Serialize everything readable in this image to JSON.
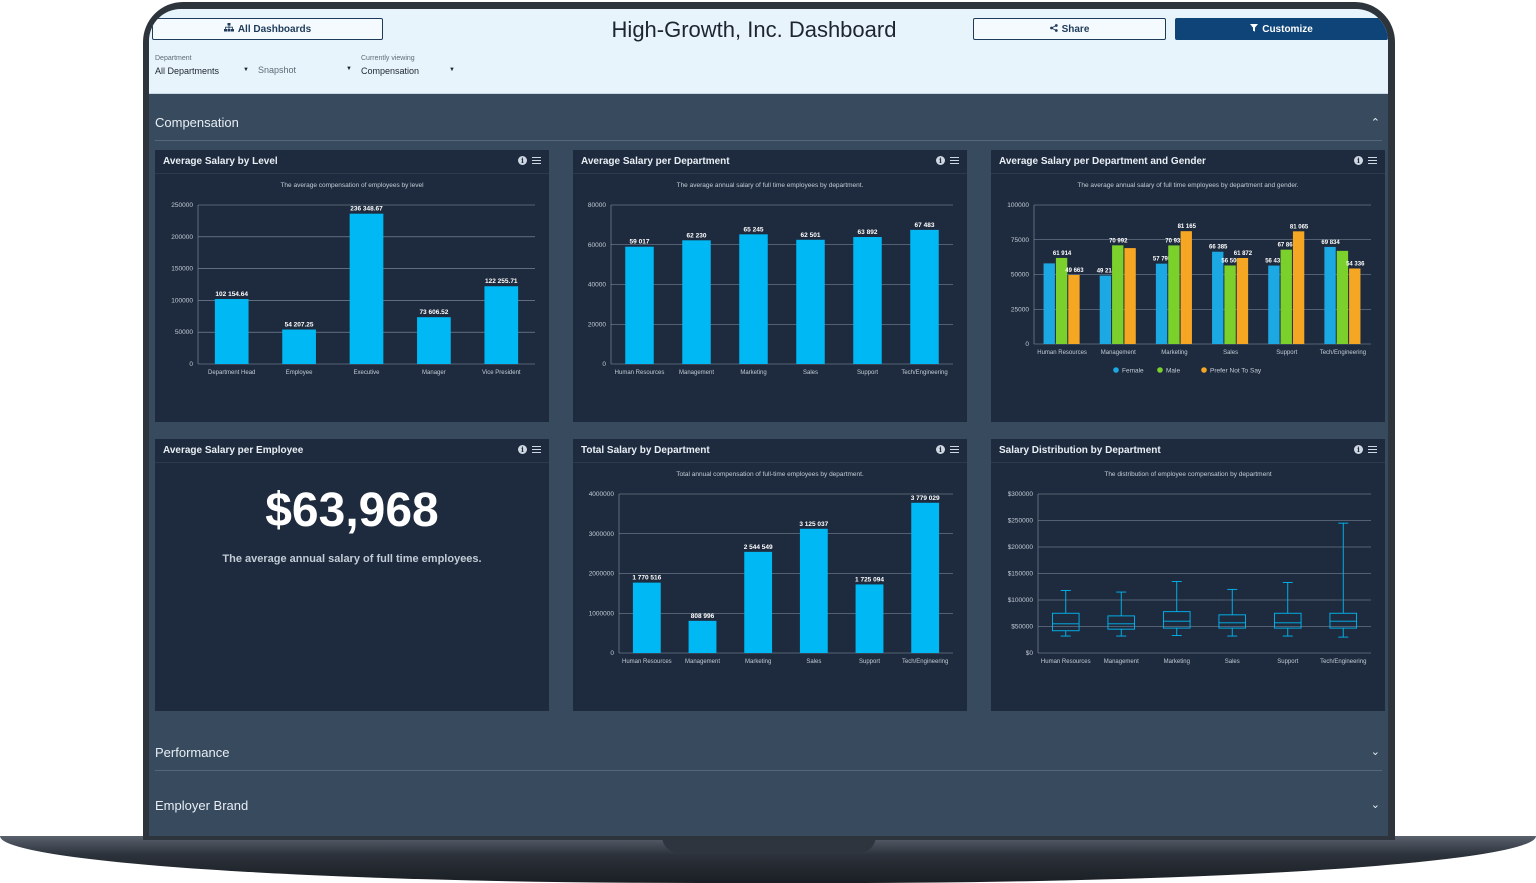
{
  "header": {
    "all_dashboards_label": "All Dashboards",
    "title": "High-Growth, Inc. Dashboard",
    "share_label": "Share",
    "customize_label": "Customize"
  },
  "filters": {
    "department_label": "Department",
    "department_value": "All Departments",
    "snapshot_placeholder": "Snapshot",
    "viewing_label": "Currently viewing",
    "viewing_value": "Compensation"
  },
  "sections": {
    "compensation": "Compensation",
    "performance": "Performance",
    "employer_brand": "Employer Brand"
  },
  "colors": {
    "bar": "#00b8f4",
    "female": "#1ba8e3",
    "male": "#7cd02c",
    "prefer_not": "#f5a623",
    "grid": "#8896a8",
    "axis_text": "#c3ccd6",
    "label_text": "#ffffff"
  },
  "kpi": {
    "title": "Average Salary per Employee",
    "value": "$63,968",
    "description": "The average annual salary of full time employees."
  },
  "chart_data": [
    {
      "id": "salary_by_level",
      "type": "bar",
      "title": "Average Salary by Level",
      "subtitle": "The average compensation of employees by level",
      "categories": [
        "Department Head",
        "Employee",
        "Executive",
        "Manager",
        "Vice President"
      ],
      "values": [
        102154.64,
        54207.25,
        236348.67,
        73606.52,
        122255.71
      ],
      "data_labels": [
        "102 154.64",
        "54 207.25",
        "236 348.67",
        "73 606.52",
        "122 255.71"
      ],
      "ylim": [
        0,
        250000
      ],
      "yticks": [
        "0",
        "50000",
        "100000",
        "150000",
        "200000",
        "250000"
      ],
      "grid": true
    },
    {
      "id": "salary_per_department",
      "type": "bar",
      "title": "Average Salary per Department",
      "subtitle": "The average annual salary of full time employees by department.",
      "categories": [
        "Human Resources",
        "Management",
        "Marketing",
        "Sales",
        "Support",
        "Tech/Engineering"
      ],
      "values": [
        59017,
        62230,
        65245,
        62501,
        63892,
        67483
      ],
      "data_labels": [
        "59 017",
        "62 230",
        "65 245",
        "62 501",
        "63 892",
        "67 483"
      ],
      "ylim": [
        0,
        80000
      ],
      "yticks": [
        "0",
        "20000",
        "40000",
        "60000",
        "80000"
      ],
      "grid": true
    },
    {
      "id": "salary_per_department_gender",
      "type": "bar",
      "title": "Average Salary per Department and Gender",
      "subtitle": "The average annual salary of full time employees by department and gender.",
      "categories": [
        "Human Resources",
        "Management",
        "Marketing",
        "Sales",
        "Support",
        "Tech/Engineering"
      ],
      "series": [
        {
          "name": "Female",
          "values": [
            58000,
            49214,
            57795,
            66385,
            56433,
            69834
          ]
        },
        {
          "name": "Male",
          "values": [
            61914,
            70992,
            70932,
            56506,
            67863,
            67000
          ]
        },
        {
          "name": "Prefer Not To Say",
          "values": [
            49663,
            69000,
            81165,
            61872,
            81065,
            54336
          ]
        }
      ],
      "data_labels": [
        [
          "",
          "49 214",
          "57 795",
          "66 385",
          "56 433",
          "69 834"
        ],
        [
          "61 914",
          "70 992",
          "70 932",
          "56 506",
          "67 863",
          ""
        ],
        [
          "49 663",
          "",
          "81 165",
          "61 872",
          "81 065",
          "54 336"
        ]
      ],
      "ylim": [
        0,
        100000
      ],
      "yticks": [
        "0",
        "25000",
        "50000",
        "75000",
        "100000"
      ],
      "legend": "bottom",
      "grid": true
    },
    {
      "id": "total_salary_by_department",
      "type": "bar",
      "title": "Total Salary by Department",
      "subtitle": "Total annual compensation of full-time employees by department.",
      "categories": [
        "Human Resources",
        "Management",
        "Marketing",
        "Sales",
        "Support",
        "Tech/Engineering"
      ],
      "values": [
        1770516,
        808996,
        2544549,
        3125037,
        1725094,
        3779029
      ],
      "data_labels": [
        "1 770 516",
        "808 996",
        "2 544 549",
        "3 125 037",
        "1 725 094",
        "3 779 029"
      ],
      "ylim": [
        0,
        4000000
      ],
      "yticks": [
        "0",
        "1000000",
        "2000000",
        "3000000",
        "4000000"
      ],
      "grid": true
    },
    {
      "id": "salary_distribution_by_department",
      "type": "boxplot",
      "title": "Salary Distribution by Department",
      "subtitle": "The distribution of employee compensation by department",
      "categories": [
        "Human Resources",
        "Management",
        "Marketing",
        "Sales",
        "Support",
        "Tech/Engineering"
      ],
      "boxes": [
        {
          "min": 32000,
          "q1": 42000,
          "median": 55000,
          "q3": 75000,
          "max": 118000
        },
        {
          "min": 32000,
          "q1": 45000,
          "median": 55000,
          "q3": 70000,
          "max": 115000
        },
        {
          "min": 33000,
          "q1": 47000,
          "median": 60000,
          "q3": 78000,
          "max": 135000
        },
        {
          "min": 32000,
          "q1": 47000,
          "median": 57000,
          "q3": 72000,
          "max": 120000
        },
        {
          "min": 32000,
          "q1": 47000,
          "median": 57000,
          "q3": 75000,
          "max": 133000
        },
        {
          "min": 30000,
          "q1": 47000,
          "median": 60000,
          "q3": 75000,
          "max": 245000
        }
      ],
      "ylim": [
        0,
        300000
      ],
      "yticks": [
        "$0",
        "$50000",
        "$100000",
        "$150000",
        "$200000",
        "$250000",
        "$300000"
      ],
      "grid": true
    }
  ]
}
